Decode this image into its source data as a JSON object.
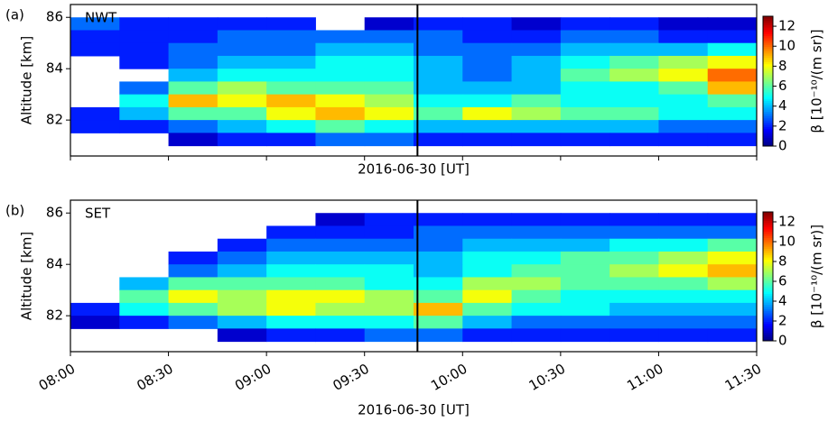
{
  "chart_data": [
    {
      "type": "heatmap",
      "panel_label": "(a)",
      "title": "NWT",
      "x_label": "2016-06-30 [UT]",
      "y_label": "Altitude [km]",
      "colorbar_label": "β [10⁻¹⁰/(m sr)]",
      "colormap": "jet",
      "x": [
        8.125,
        8.375,
        8.625,
        8.875,
        9.125,
        9.375,
        9.625,
        9.875,
        10.125,
        10.375,
        10.625,
        10.875,
        11.125,
        11.375
      ],
      "y": [
        85.75,
        85.25,
        84.75,
        84.25,
        83.75,
        83.25,
        82.75,
        82.25,
        81.75,
        81.25
      ],
      "z": [
        [
          3,
          2,
          2,
          2,
          2,
          null,
          1,
          2,
          2,
          1,
          2,
          2,
          1,
          1
        ],
        [
          2,
          2,
          2,
          3,
          3,
          3,
          3,
          3,
          2,
          2,
          3,
          3,
          2,
          2
        ],
        [
          2,
          2,
          3,
          3,
          3,
          4,
          4,
          3,
          3,
          3,
          4,
          4,
          4,
          5
        ],
        [
          null,
          2,
          3,
          4,
          4,
          5,
          5,
          4,
          3,
          4,
          5,
          6,
          7,
          8
        ],
        [
          null,
          null,
          4,
          5,
          5,
          5,
          5,
          4,
          3,
          4,
          6,
          7,
          8,
          10
        ],
        [
          null,
          3,
          6,
          7,
          6,
          6,
          6,
          4,
          4,
          4,
          5,
          5,
          6,
          9
        ],
        [
          null,
          5,
          9,
          8,
          9,
          8,
          7,
          5,
          5,
          6,
          5,
          5,
          5,
          6
        ],
        [
          2,
          4,
          6,
          6,
          8,
          9,
          8,
          6,
          8,
          7,
          6,
          6,
          5,
          5
        ],
        [
          2,
          2,
          3,
          4,
          5,
          6,
          5,
          4,
          4,
          4,
          4,
          4,
          3,
          3
        ],
        [
          null,
          null,
          1,
          2,
          2,
          3,
          3,
          2,
          2,
          2,
          2,
          2,
          2,
          2
        ]
      ],
      "xlim": [
        8,
        11.5
      ],
      "ylim": [
        80.6,
        86.5
      ],
      "yticks": [
        82,
        84,
        86
      ],
      "clim": [
        0,
        13
      ],
      "cticks": [
        0,
        2,
        4,
        6,
        8,
        10,
        12
      ],
      "vline": 9.77
    },
    {
      "type": "heatmap",
      "panel_label": "(b)",
      "title": "SET",
      "x_label": "2016-06-30 [UT]",
      "y_label": "Altitude [km]",
      "colorbar_label": "β [10⁻¹⁰/(m sr)]",
      "colormap": "jet",
      "x": [
        8.125,
        8.375,
        8.625,
        8.875,
        9.125,
        9.375,
        9.625,
        9.875,
        10.125,
        10.375,
        10.625,
        10.875,
        11.125,
        11.375
      ],
      "y": [
        85.75,
        85.25,
        84.75,
        84.25,
        83.75,
        83.25,
        82.75,
        82.25,
        81.75,
        81.25
      ],
      "z": [
        [
          null,
          null,
          null,
          null,
          null,
          1,
          2,
          2,
          2,
          2,
          2,
          2,
          2,
          2
        ],
        [
          null,
          null,
          null,
          null,
          2,
          2,
          2,
          3,
          3,
          3,
          3,
          3,
          3,
          3
        ],
        [
          null,
          null,
          null,
          2,
          3,
          3,
          3,
          3,
          4,
          4,
          4,
          5,
          5,
          6
        ],
        [
          null,
          null,
          2,
          3,
          4,
          4,
          4,
          4,
          5,
          5,
          6,
          6,
          7,
          8
        ],
        [
          null,
          null,
          3,
          4,
          5,
          5,
          5,
          4,
          5,
          6,
          6,
          7,
          8,
          9
        ],
        [
          null,
          4,
          6,
          6,
          6,
          6,
          5,
          5,
          7,
          7,
          6,
          6,
          6,
          7
        ],
        [
          null,
          6,
          8,
          7,
          8,
          8,
          7,
          6,
          8,
          6,
          5,
          5,
          5,
          5
        ],
        [
          2,
          5,
          6,
          7,
          8,
          7,
          7,
          9,
          6,
          5,
          5,
          4,
          4,
          4
        ],
        [
          1,
          2,
          3,
          4,
          5,
          5,
          5,
          6,
          4,
          3,
          3,
          3,
          3,
          3
        ],
        [
          null,
          null,
          null,
          1,
          2,
          2,
          3,
          3,
          2,
          2,
          2,
          2,
          2,
          2
        ]
      ],
      "xlim": [
        8,
        11.5
      ],
      "ylim": [
        80.6,
        86.5
      ],
      "yticks": [
        82,
        84,
        86
      ],
      "xticks": [
        {
          "value": 8,
          "label": "08:00"
        },
        {
          "value": 8.5,
          "label": "08:30"
        },
        {
          "value": 9,
          "label": "09:00"
        },
        {
          "value": 9.5,
          "label": "09:30"
        },
        {
          "value": 10,
          "label": "10:00"
        },
        {
          "value": 10.5,
          "label": "10:30"
        },
        {
          "value": 11,
          "label": "11:00"
        },
        {
          "value": 11.5,
          "label": "11:30"
        }
      ],
      "clim": [
        0,
        13
      ],
      "cticks": [
        0,
        2,
        4,
        6,
        8,
        10,
        12
      ],
      "vline": 9.77
    }
  ]
}
